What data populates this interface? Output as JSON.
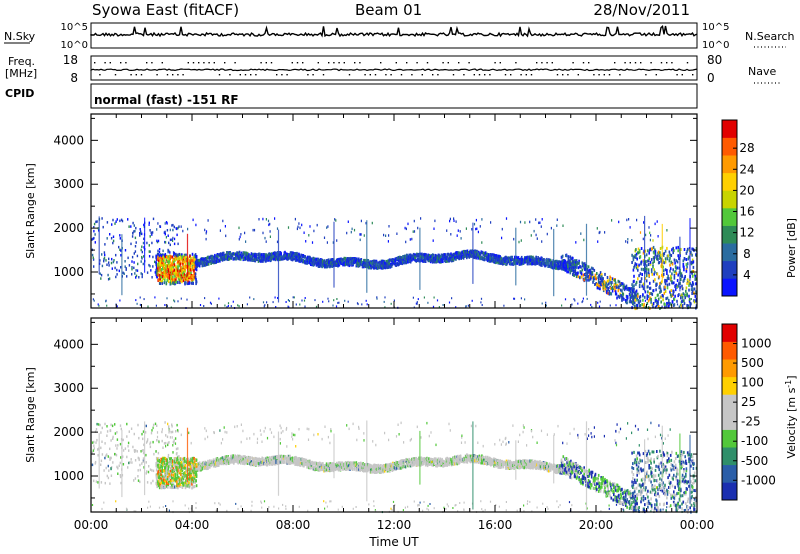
{
  "header": {
    "station": "Syowa East (fitACF)",
    "beam": "Beam 01",
    "date": "28/Nov/2011"
  },
  "strips": {
    "nsky_label": "N.Sky",
    "nsky_ticks": [
      "10^5",
      "10^0"
    ],
    "nsearch_label": "N.Search",
    "nsearch_ticks": [
      "10^5",
      "10^0"
    ],
    "freq_label": "Freq.",
    "freq_unit": "[MHz]",
    "freq_ticks": [
      "18",
      "8"
    ],
    "nave_label": "Nave",
    "nave_ticks": [
      "80",
      "0"
    ],
    "cpid_label": "CPID",
    "cpid_text": "normal (fast) -151 RF"
  },
  "chart_data": [
    {
      "type": "heatmap",
      "name": "power",
      "ylabel": "Slant Range [km]",
      "xlabel": "Time UT",
      "x_ticks": [
        "00:00",
        "04:00",
        "08:00",
        "12:00",
        "16:00",
        "20:00",
        "00:00"
      ],
      "y_ticks": [
        1000,
        2000,
        3000,
        4000
      ],
      "ylim": [
        180,
        4600
      ],
      "xlim_hours": [
        0,
        24
      ],
      "colorbar": {
        "label": "Power [dB]",
        "ticks": [
          "4",
          "8",
          "12",
          "16",
          "20",
          "24",
          "28"
        ],
        "colors": [
          "#0a14ff",
          "#1f3fbf",
          "#2a6ca0",
          "#2e8b57",
          "#52c83a",
          "#c8d400",
          "#ffd000",
          "#ff9a00",
          "#ff5a00",
          "#e10000"
        ]
      },
      "echo_bands": [
        {
          "t": [
            2.5,
            4.0
          ],
          "r": [
            750,
            1400
          ],
          "note": "strong patch"
        },
        {
          "t": [
            4.0,
            19.5
          ],
          "r": [
            1150,
            1500
          ],
          "note": "main band"
        },
        {
          "t": [
            19.0,
            21.5
          ],
          "r": [
            300,
            1100
          ],
          "note": "descending patch"
        },
        {
          "t": [
            21.5,
            24.0
          ],
          "r": [
            200,
            1600
          ],
          "note": "late patch"
        }
      ]
    },
    {
      "type": "heatmap",
      "name": "velocity",
      "ylabel": "Slant Range [km]",
      "xlabel": "Time UT",
      "x_ticks": [
        "00:00",
        "04:00",
        "08:00",
        "12:00",
        "16:00",
        "20:00",
        "00:00"
      ],
      "y_ticks": [
        1000,
        2000,
        3000,
        4000
      ],
      "ylim": [
        180,
        4600
      ],
      "xlim_hours": [
        0,
        24
      ],
      "colorbar": {
        "label": "Velocity [m s^-1]",
        "ticks": [
          "1000",
          "500",
          "100",
          "25",
          "-25",
          "-100",
          "-500",
          "-1000"
        ],
        "colors": [
          "#1a2fb0",
          "#2a5ea8",
          "#2f8f6a",
          "#52c83a",
          "#c6c6c6",
          "#c6c6c6",
          "#ffd000",
          "#ff9a00",
          "#ff5a00",
          "#e10000"
        ]
      }
    }
  ],
  "x_axis_title": "Time UT"
}
